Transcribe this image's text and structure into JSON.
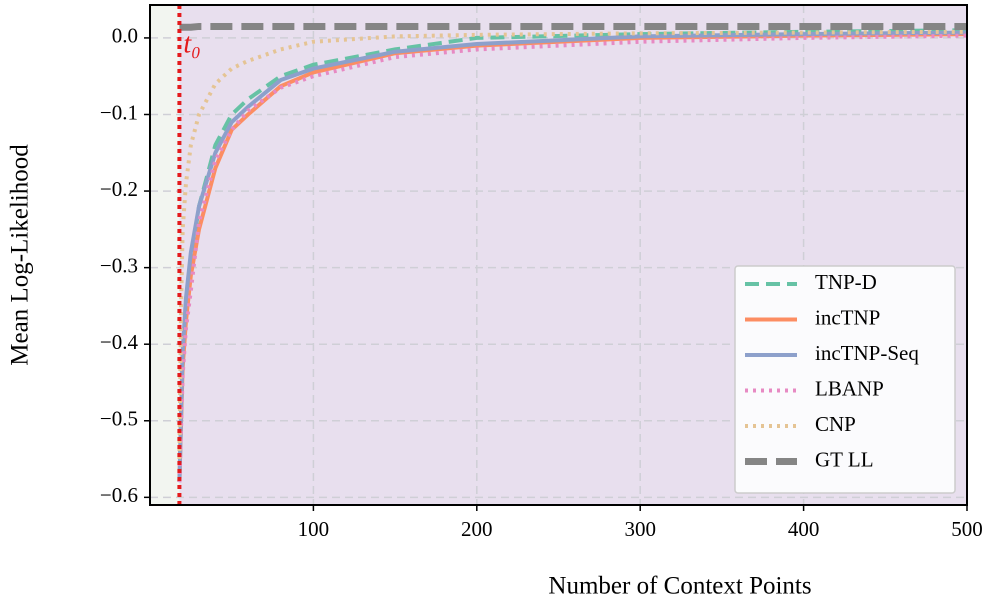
{
  "chart_data": {
    "type": "line",
    "xlabel": "Number of Context Points",
    "ylabel": "Mean Log-Likelihood",
    "x": [
      18,
      19,
      20,
      22,
      25,
      30,
      40,
      50,
      60,
      80,
      100,
      150,
      200,
      300,
      400,
      500
    ],
    "series": [
      {
        "name": "TNP-D",
        "color": "#66c2a5",
        "dash": "dashed",
        "values": [
          -0.58,
          -0.5,
          -0.42,
          -0.35,
          -0.29,
          -0.22,
          -0.14,
          -0.1,
          -0.08,
          -0.05,
          -0.035,
          -0.015,
          0.0,
          0.005,
          0.008,
          0.01
        ]
      },
      {
        "name": "incTNP",
        "color": "#fc8d62",
        "dash": "solid",
        "values": [
          -0.58,
          -0.5,
          -0.43,
          -0.37,
          -0.31,
          -0.25,
          -0.17,
          -0.12,
          -0.1,
          -0.063,
          -0.045,
          -0.02,
          -0.01,
          0.0,
          0.003,
          0.005
        ]
      },
      {
        "name": "incTNP-Seq",
        "color": "#8da0cb",
        "dash": "solid",
        "values": [
          -0.58,
          -0.49,
          -0.41,
          -0.34,
          -0.28,
          -0.22,
          -0.15,
          -0.11,
          -0.09,
          -0.055,
          -0.04,
          -0.018,
          -0.008,
          0.002,
          0.005,
          0.007
        ]
      },
      {
        "name": "LBANP",
        "color": "#e78ac3",
        "dash": "dotted",
        "values": [
          -0.58,
          -0.51,
          -0.44,
          -0.38,
          -0.33,
          -0.24,
          -0.16,
          -0.12,
          -0.095,
          -0.065,
          -0.05,
          -0.025,
          -0.015,
          -0.005,
          0.0,
          0.003
        ]
      },
      {
        "name": "CNP",
        "color": "#e5c494",
        "dash": "dotted",
        "values": [
          -0.55,
          -0.35,
          -0.25,
          -0.19,
          -0.14,
          -0.1,
          -0.06,
          -0.04,
          -0.03,
          -0.015,
          -0.005,
          0.002,
          0.004,
          0.006,
          0.007,
          0.008
        ]
      },
      {
        "name": "GT LL",
        "color": "#858585",
        "dash": "bold-dashed",
        "values": [
          0.014,
          0.014,
          0.014,
          0.014,
          0.014,
          0.015,
          0.015,
          0.015,
          0.015,
          0.015,
          0.015,
          0.015,
          0.015,
          0.015,
          0.015,
          0.015
        ]
      }
    ],
    "xlim": [
      0,
      500
    ],
    "ylim": [
      -0.61,
      0.043
    ],
    "xticks": [
      100,
      200,
      300,
      400,
      500
    ],
    "yticks": [
      {
        "value": -0.6,
        "label": "−0.6"
      },
      {
        "value": -0.5,
        "label": "−0.5"
      },
      {
        "value": -0.4,
        "label": "−0.4"
      },
      {
        "value": -0.3,
        "label": "−0.3"
      },
      {
        "value": -0.2,
        "label": "−0.2"
      },
      {
        "value": -0.1,
        "label": "−0.1"
      },
      {
        "value": 0,
        "label": "0.0"
      }
    ],
    "grid": true,
    "legend": "lower right",
    "vline": {
      "x": 18,
      "label": "t₀",
      "color": "#e41a1c"
    },
    "shade_before_color": "#f2f5f0",
    "shade_after_color": "#e8dfee"
  }
}
